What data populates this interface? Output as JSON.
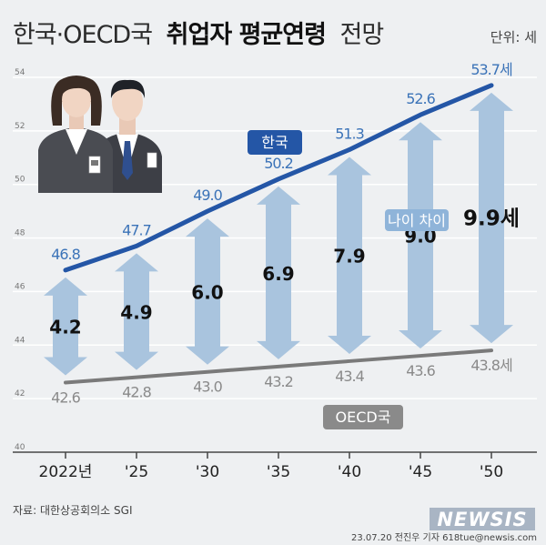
{
  "title": {
    "part1": "한국·OECD국",
    "part2": "취업자 평균연령",
    "part3": "전망"
  },
  "unit": "단위: 세",
  "chart_data": {
    "type": "line",
    "x": [
      "2022년",
      "'25",
      "'30",
      "'35",
      "'40",
      "'45",
      "'50"
    ],
    "ylim": [
      40,
      54
    ],
    "yticks": [
      40,
      42,
      44,
      46,
      48,
      50,
      52,
      54
    ],
    "series": [
      {
        "name": "한국",
        "values": [
          46.8,
          47.7,
          49.0,
          50.2,
          51.3,
          52.6,
          53.7
        ],
        "labels": [
          "46.8",
          "47.7",
          "49.0",
          "50.2",
          "51.3",
          "52.6",
          "53.7세"
        ],
        "color": "#2456a6"
      },
      {
        "name": "OECD국",
        "values": [
          42.6,
          42.8,
          43.0,
          43.2,
          43.4,
          43.6,
          43.8
        ],
        "labels": [
          "42.6",
          "42.8",
          "43.0",
          "43.2",
          "43.4",
          "43.6",
          "43.8세"
        ],
        "color": "#7a7a7a"
      }
    ],
    "gap": {
      "name": "나이 차이",
      "values": [
        4.2,
        4.9,
        6.0,
        6.9,
        7.9,
        9.0,
        9.9
      ],
      "labels": [
        "4.2",
        "4.9",
        "6.0",
        "6.9",
        "7.9",
        "9.0",
        "9.9세"
      ]
    },
    "grid": true
  },
  "colors": {
    "korea": "#2456a6",
    "oecd": "#7a7a7a",
    "arrow": "#a9c4de",
    "background": "#eef0f2"
  },
  "source": "자료: 대한상공회의소 SGI",
  "credit": "23.07.20 전진우 기자 618tue@newsis.com",
  "watermark": "NEWSIS"
}
